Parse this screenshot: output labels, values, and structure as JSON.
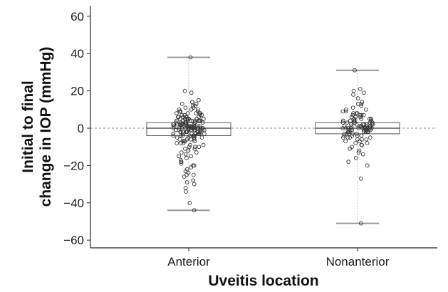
{
  "chart_data": {
    "type": "box",
    "title": "",
    "xlabel": "Uveitis location",
    "ylabel_lines": [
      "Initial to final",
      "change in IOP (mmHg)"
    ],
    "ylim": [
      -65,
      65
    ],
    "yticks": [
      60,
      40,
      20,
      0,
      -20,
      -40,
      -60
    ],
    "ytick_labels": [
      "60",
      "40",
      "20",
      "0",
      "−20",
      "−40",
      "−60"
    ],
    "reference_line": 0,
    "grid": false,
    "colors": {
      "box_edge": "#555555",
      "whisker": "#bbbbbb",
      "cap": "#999999",
      "points": "#333333",
      "reference_line": "#888888"
    },
    "categories": [
      "Anterior",
      "Nonanterior"
    ],
    "boxes": [
      {
        "category": "Anterior",
        "q1": -4,
        "median": 0,
        "q3": 3,
        "whisker_low": -44,
        "whisker_high": 38
      },
      {
        "category": "Nonanterior",
        "q1": -3,
        "median": 0,
        "q3": 3,
        "whisker_low": -51,
        "whisker_high": 31
      }
    ],
    "points": [
      {
        "category": "Anterior",
        "values": [
          38,
          20,
          19,
          15,
          14,
          14,
          13,
          13,
          12,
          12,
          11,
          11,
          10,
          10,
          10,
          9,
          9,
          9,
          8,
          8,
          8,
          8,
          8,
          7,
          7,
          7,
          7,
          7,
          6,
          6,
          6,
          6,
          6,
          6,
          5,
          5,
          5,
          5,
          5,
          5,
          5,
          4,
          4,
          4,
          4,
          4,
          4,
          4,
          4,
          3,
          3,
          3,
          3,
          3,
          3,
          3,
          3,
          3,
          2,
          2,
          2,
          2,
          2,
          2,
          2,
          2,
          2,
          2,
          1,
          1,
          1,
          1,
          1,
          1,
          1,
          1,
          1,
          1,
          1,
          1,
          0,
          0,
          0,
          0,
          0,
          0,
          0,
          0,
          0,
          0,
          0,
          0,
          0,
          0,
          -1,
          -1,
          -1,
          -1,
          -1,
          -1,
          -1,
          -1,
          -1,
          -1,
          -1,
          -2,
          -2,
          -2,
          -2,
          -2,
          -2,
          -2,
          -2,
          -2,
          -3,
          -3,
          -3,
          -3,
          -3,
          -3,
          -3,
          -3,
          -4,
          -4,
          -4,
          -4,
          -4,
          -4,
          -4,
          -5,
          -5,
          -5,
          -5,
          -5,
          -6,
          -6,
          -6,
          -6,
          -7,
          -7,
          -7,
          -7,
          -8,
          -8,
          -8,
          -9,
          -9,
          -10,
          -10,
          -10,
          -11,
          -11,
          -12,
          -12,
          -13,
          -13,
          -14,
          -15,
          -15,
          -16,
          -17,
          -18,
          -18,
          -19,
          -20,
          -20,
          -21,
          -22,
          -23,
          -24,
          -25,
          -25,
          -26,
          -28,
          -29,
          -30,
          -32,
          -34,
          -40,
          -44
        ]
      },
      {
        "category": "Nonanterior",
        "values": [
          31,
          21,
          20,
          19,
          18,
          16,
          14,
          13,
          13,
          12,
          11,
          10,
          10,
          9,
          9,
          8,
          8,
          8,
          7,
          7,
          7,
          7,
          6,
          6,
          6,
          6,
          5,
          5,
          5,
          5,
          5,
          4,
          4,
          4,
          4,
          4,
          3,
          3,
          3,
          3,
          3,
          3,
          2,
          2,
          2,
          2,
          2,
          2,
          2,
          1,
          1,
          1,
          1,
          1,
          1,
          1,
          1,
          0,
          0,
          0,
          0,
          0,
          0,
          0,
          0,
          0,
          0,
          0,
          -1,
          -1,
          -1,
          -1,
          -1,
          -1,
          -1,
          -1,
          -2,
          -2,
          -2,
          -2,
          -2,
          -2,
          -3,
          -3,
          -3,
          -3,
          -3,
          -4,
          -4,
          -4,
          -4,
          -5,
          -5,
          -5,
          -5,
          -6,
          -6,
          -6,
          -7,
          -7,
          -8,
          -8,
          -9,
          -9,
          -10,
          -11,
          -12,
          -13,
          -14,
          -16,
          -18,
          -20,
          -27,
          -51
        ]
      }
    ]
  }
}
